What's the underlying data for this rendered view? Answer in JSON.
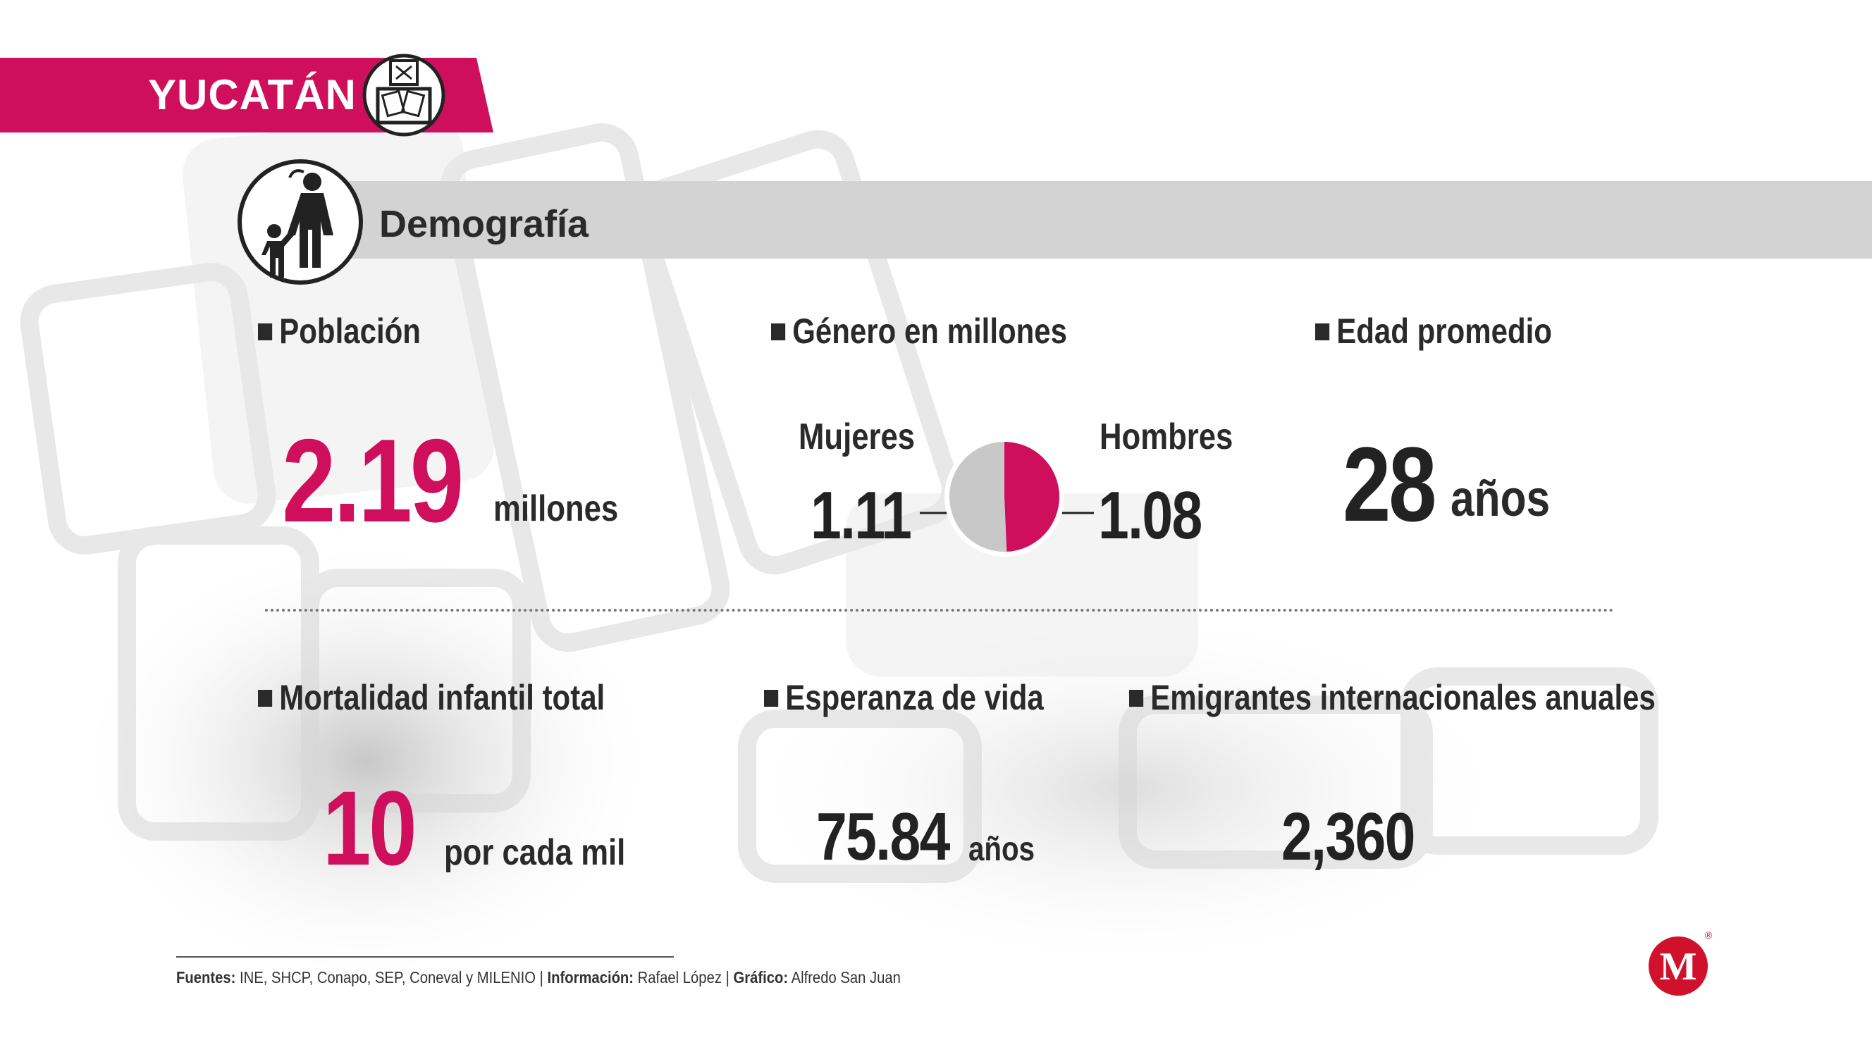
{
  "state": "YUCATÁN",
  "section": "Demografía",
  "poblacion": {
    "label": "Población",
    "value": "2.19",
    "unit": "millones"
  },
  "genero": {
    "label": "Género en millones",
    "mujeres": {
      "label": "Mujeres",
      "value": "1.11"
    },
    "hombres": {
      "label": "Hombres",
      "value": "1.08"
    }
  },
  "edad": {
    "label": "Edad promedio",
    "value": "28",
    "unit": "años"
  },
  "mortalidad": {
    "label": "Mortalidad infantil total",
    "value": "10",
    "unit": "por cada mil"
  },
  "esperanza": {
    "label": "Esperanza de vida",
    "value": "75.84",
    "unit": "años"
  },
  "emigrantes": {
    "label": "Emigrantes internacionales anuales",
    "value": "2,360"
  },
  "footer": {
    "fuentes_label": "Fuentes:",
    "fuentes_value": "INE, SHCP, Conapo, SEP, Coneval y MILENIO",
    "info_label": "Información:",
    "info_value": "Rafael López",
    "grafico_label": "Gráfico:",
    "grafico_value": "Alfredo San Juan"
  },
  "logo": {
    "letter": "M",
    "mark": "®"
  },
  "colors": {
    "accent": "#cf0f5c",
    "text": "#222222",
    "bar": "#d3d3d3",
    "pie_grey": "#c8c8c8"
  }
}
